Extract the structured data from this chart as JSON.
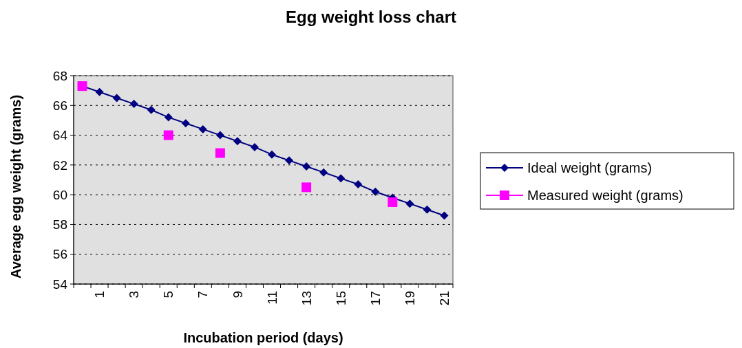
{
  "chart_data": {
    "type": "line",
    "title": "Egg weight loss chart",
    "xlabel": "Incubation period (days)",
    "ylabel": "Average egg weight (grams)",
    "categories": [
      null,
      "1",
      null,
      "3",
      null,
      "5",
      null,
      "7",
      null,
      "9",
      null,
      "11",
      null,
      "13",
      null,
      "15",
      null,
      "17",
      null,
      "19",
      null,
      "21"
    ],
    "series": [
      {
        "name": "Ideal weight (grams)",
        "color": "#000080",
        "marker": "diamond",
        "values": [
          67.3,
          66.9,
          66.5,
          66.1,
          65.7,
          65.2,
          64.8,
          64.4,
          64.0,
          63.6,
          63.2,
          62.7,
          62.3,
          61.9,
          61.5,
          61.1,
          60.7,
          60.2,
          59.8,
          59.4,
          59.0,
          58.6
        ]
      },
      {
        "name": "Measured weight (grams)",
        "type": "scatter",
        "color": "#ff00ff",
        "marker": "square",
        "values": [
          67.3,
          null,
          null,
          null,
          null,
          64.0,
          null,
          null,
          62.8,
          null,
          null,
          null,
          null,
          60.5,
          null,
          null,
          null,
          null,
          59.5,
          null,
          null,
          null
        ]
      }
    ],
    "ylim": [
      54,
      68
    ],
    "yticks": [
      54,
      56,
      58,
      60,
      62,
      64,
      66,
      68
    ],
    "grid": "y",
    "legend": "right"
  }
}
